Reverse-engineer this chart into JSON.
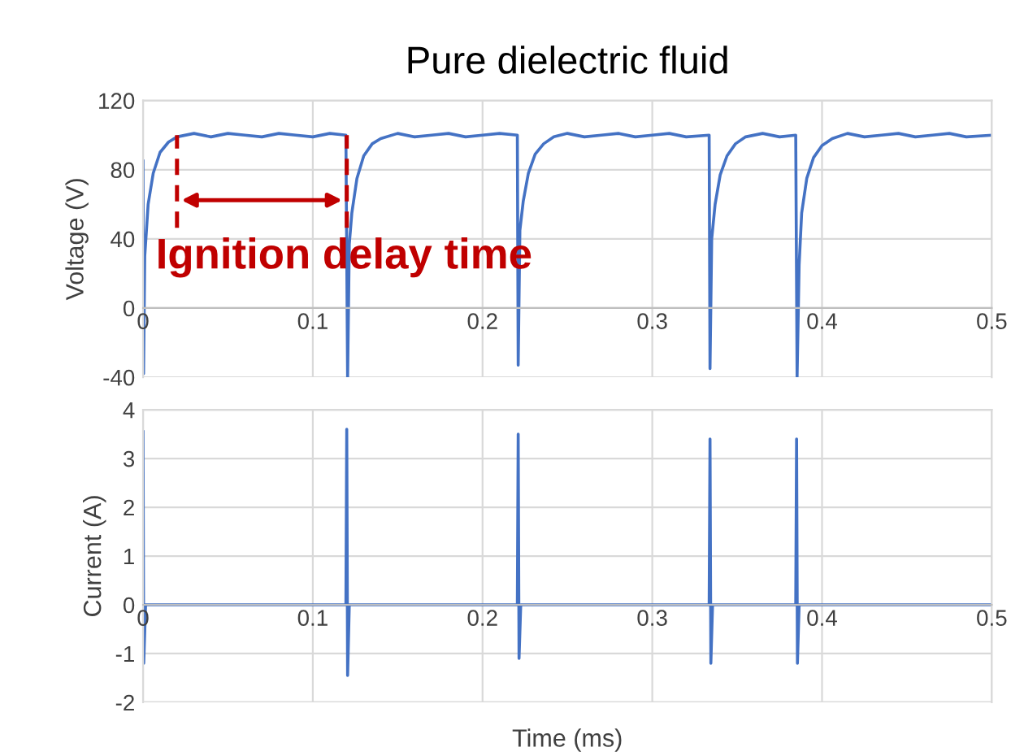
{
  "chart_data": [
    {
      "type": "line",
      "title": "Pure dielectric fluid",
      "ylabel": "Voltage (V)",
      "color": "#4472c4",
      "x": [
        0,
        0.0003,
        0.001,
        0.003,
        0.006,
        0.01,
        0.015,
        0.02,
        0.03,
        0.04,
        0.05,
        0.06,
        0.07,
        0.08,
        0.09,
        0.1,
        0.11,
        0.1195,
        0.1205,
        0.1215,
        0.123,
        0.126,
        0.13,
        0.135,
        0.14,
        0.15,
        0.16,
        0.17,
        0.18,
        0.19,
        0.2,
        0.21,
        0.2205,
        0.221,
        0.222,
        0.224,
        0.227,
        0.231,
        0.236,
        0.242,
        0.25,
        0.26,
        0.27,
        0.28,
        0.29,
        0.3,
        0.31,
        0.32,
        0.3335,
        0.334,
        0.335,
        0.337,
        0.34,
        0.344,
        0.349,
        0.355,
        0.365,
        0.375,
        0.3845,
        0.3853,
        0.3865,
        0.388,
        0.391,
        0.395,
        0.4,
        0.406,
        0.415,
        0.425,
        0.435,
        0.445,
        0.455,
        0.465,
        0.475,
        0.485,
        0.5
      ],
      "values": [
        85,
        -38,
        30,
        60,
        78,
        90,
        96,
        99,
        101,
        99,
        101,
        100,
        99,
        101,
        100,
        99,
        101,
        100,
        -40,
        37,
        55,
        75,
        88,
        95,
        98,
        101,
        99,
        100,
        101,
        99,
        100,
        101,
        100,
        -33,
        45,
        62,
        78,
        89,
        95,
        99,
        101,
        99,
        100,
        101,
        99,
        100,
        101,
        99,
        100,
        -35,
        40,
        60,
        77,
        88,
        95,
        99,
        101,
        99,
        100,
        -40,
        25,
        55,
        75,
        87,
        94,
        98,
        101,
        99,
        100,
        101,
        99,
        100,
        101,
        99,
        100
      ],
      "xlim": [
        0,
        0.5
      ],
      "xticks": [
        0,
        0.1,
        0.2,
        0.3,
        0.4,
        0.5
      ],
      "ylim": [
        -40,
        120
      ],
      "yticks": [
        -40,
        0,
        40,
        80,
        120
      ],
      "grid": true,
      "annotations": [
        {
          "text": "Ignition delay time",
          "x": 0.12,
          "y": 100
        }
      ]
    },
    {
      "type": "line",
      "xlabel": "Time (ms)",
      "ylabel": "Current (A)",
      "color": "#4472c4",
      "x": [
        0,
        0.0004,
        0.0015,
        0.03,
        0.06,
        0.09,
        0.1195,
        0.12,
        0.1205,
        0.1215,
        0.15,
        0.18,
        0.2205,
        0.221,
        0.2215,
        0.2225,
        0.25,
        0.28,
        0.31,
        0.3335,
        0.334,
        0.3345,
        0.3355,
        0.36,
        0.3845,
        0.385,
        0.3855,
        0.3865,
        0.42,
        0.45,
        0.48,
        0.5
      ],
      "values": [
        3.55,
        -1.2,
        0,
        0,
        0,
        0,
        0,
        3.6,
        -1.45,
        0,
        0,
        0,
        0,
        3.5,
        -1.1,
        0,
        0,
        0,
        0,
        0,
        3.4,
        -1.2,
        0,
        0,
        0,
        3.4,
        -1.2,
        0,
        0,
        0,
        0,
        0
      ],
      "xlim": [
        0,
        0.5
      ],
      "xticks": [
        0,
        0.1,
        0.2,
        0.3,
        0.4,
        0.5
      ],
      "ylim": [
        -2,
        4
      ],
      "yticks": [
        -2,
        -1,
        0,
        1,
        2,
        3,
        4
      ],
      "grid": true
    }
  ]
}
